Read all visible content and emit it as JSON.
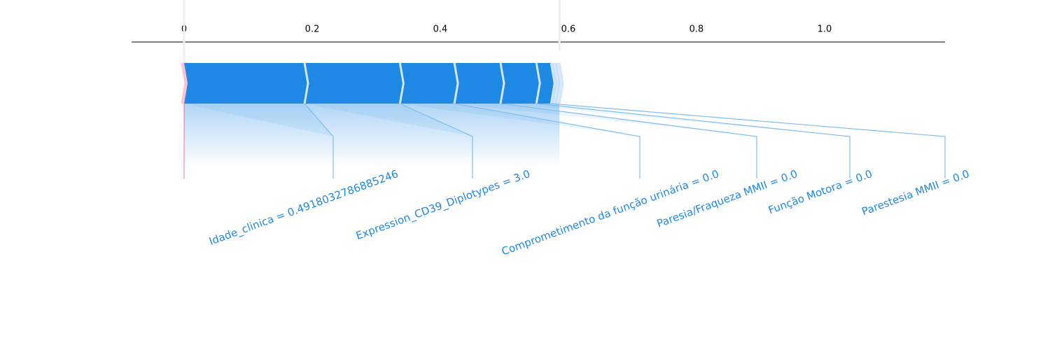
{
  "chart_data": {
    "type": "force",
    "xlim": [
      -0.082,
      1.188
    ],
    "xticks": [
      0,
      0.2,
      0.4,
      0.6,
      0.8,
      {
        "value": 1,
        "label": "1.0"
      }
    ],
    "base_value": 0,
    "categories": [
      "Idade_clinica = 0.4918032786885246",
      "Expression_CD39_Diplotypes = 3.0",
      "Comprometimento da função urinária = 0.0",
      "Paresia/Fraqueza MMII = 0.0",
      "Função Motora = 0.0",
      "Parestesia MMII = 0.0",
      null,
      null,
      null,
      null
    ],
    "values": [
      0.188,
      0.149,
      0.085,
      0.072,
      0.056,
      0.023,
      0.005,
      0.005,
      0.003,
      -0.005
    ],
    "positive_color": "#1e88e5",
    "negative_color": "#ff0d57"
  }
}
